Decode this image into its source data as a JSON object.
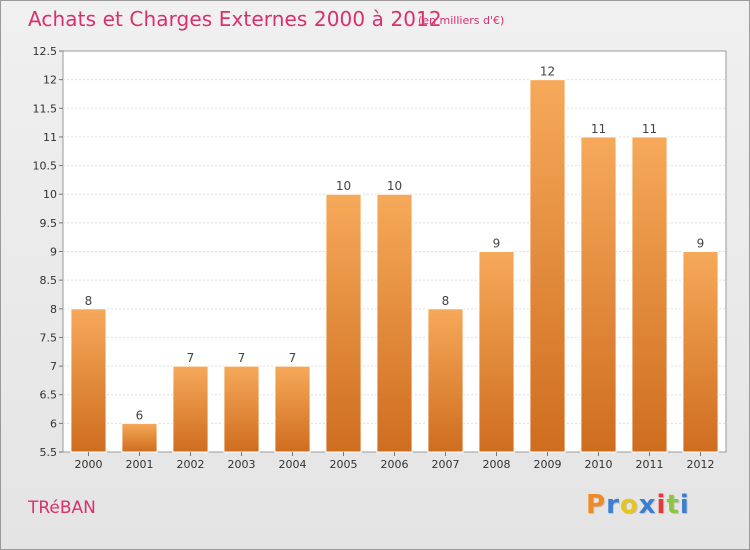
{
  "chart_data": {
    "type": "bar",
    "title": "Achats et Charges Externes 2000 à 2012",
    "subtitle": "(en milliers d'€)",
    "categories": [
      "2000",
      "2001",
      "2002",
      "2003",
      "2004",
      "2005",
      "2006",
      "2007",
      "2008",
      "2009",
      "2010",
      "2011",
      "2012"
    ],
    "values": [
      8,
      6,
      7,
      7,
      7,
      10,
      10,
      8,
      9,
      12,
      11,
      11,
      9
    ],
    "ylim": [
      5.5,
      12.5
    ],
    "yticks": [
      5.5,
      6,
      6.5,
      7,
      7.5,
      8,
      8.5,
      9,
      9.5,
      10,
      10.5,
      11,
      11.5,
      12,
      12.5
    ],
    "ytick_labels": [
      "5.5",
      "6",
      "6.5",
      "7",
      "7.5",
      "8",
      "8.5",
      "9",
      "9.5",
      "10",
      "10.5",
      "11",
      "11.5",
      "12",
      "12.5"
    ],
    "grid": true,
    "legend": "none",
    "bar_color_top": "#f6a95a",
    "bar_color_bottom": "#cf6d1f",
    "xlabel": "",
    "ylabel": ""
  },
  "footer": {
    "town": "TRéBAN",
    "logo_letters": [
      "P",
      "r",
      "o",
      "x",
      "i",
      "t",
      "i"
    ],
    "logo_colors": [
      "#f08a24",
      "#3a7fd1",
      "#e8c51c",
      "#3a7fd1",
      "#e23b3b",
      "#8cc63f",
      "#3a7fd1"
    ]
  }
}
